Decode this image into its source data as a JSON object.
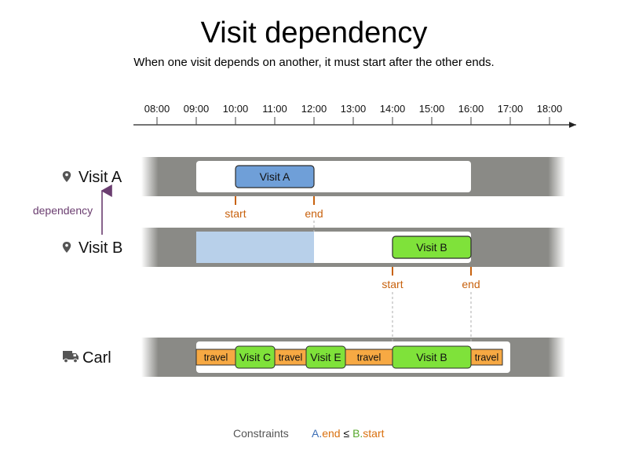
{
  "header": {
    "title": "Visit dependency",
    "subtitle": "When one visit depends on another, it must start after the other ends."
  },
  "timeline": {
    "ticks": [
      "08:00",
      "09:00",
      "10:00",
      "11:00",
      "12:00",
      "13:00",
      "14:00",
      "15:00",
      "16:00",
      "17:00",
      "18:00"
    ]
  },
  "rows": {
    "visit_a": {
      "label": "Visit A",
      "icon": "map-pin-icon",
      "window": [
        "09:00",
        "16:00"
      ],
      "visit": {
        "label": "Visit A",
        "start": "10:00",
        "end": "12:00"
      }
    },
    "visit_b": {
      "label": "Visit B",
      "icon": "map-pin-icon",
      "window": [
        "09:00",
        "16:00"
      ],
      "blocked_until": "12:00",
      "visit": {
        "label": "Visit B",
        "start": "14:00",
        "end": "16:00"
      }
    },
    "carl": {
      "label": "Carl",
      "icon": "truck-icon",
      "window": [
        "09:00",
        "17:00"
      ],
      "segments": [
        {
          "kind": "travel",
          "label": "travel",
          "start": "09:00",
          "end": "10:00"
        },
        {
          "kind": "visit",
          "label": "Visit C",
          "start": "10:00",
          "end": "11:00"
        },
        {
          "kind": "travel",
          "label": "travel",
          "start": "11:00",
          "end": "11:48"
        },
        {
          "kind": "visit",
          "label": "Visit E",
          "start": "11:48",
          "end": "12:48"
        },
        {
          "kind": "travel",
          "label": "travel",
          "start": "12:48",
          "end": "14:00"
        },
        {
          "kind": "visit",
          "label": "Visit B",
          "start": "14:00",
          "end": "16:00"
        },
        {
          "kind": "travel",
          "label": "travel",
          "start": "16:00",
          "end": "16:48"
        }
      ]
    }
  },
  "markers": {
    "a_start": "start",
    "a_end": "end",
    "b_start": "start",
    "b_end": "end"
  },
  "dependency_label": "dependency",
  "constraints": {
    "label": "Constraints",
    "a": "A",
    "dot1": ".",
    "end": "end",
    "leq": " ≤ ",
    "b": "B",
    "dot2": ".",
    "start": "start"
  },
  "colors": {
    "visit_a": "#6f9fd8",
    "visit_green": "#7fe23a",
    "travel": "#f7a943",
    "blocked": "#b8d0ea",
    "band": "#7f7f7c",
    "marker": "#c8620e",
    "dependency": "#6b3e70",
    "constraint_blue": "#3d6fb6",
    "constraint_orange": "#d9700f",
    "constraint_green": "#57a82c"
  }
}
